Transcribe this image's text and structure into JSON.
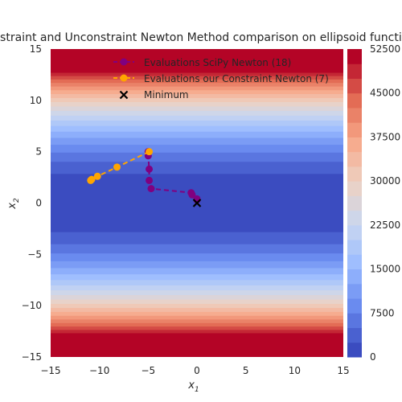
{
  "chart_data": {
    "type": "line",
    "title": "Constraint and Unconstraint Newton Method comparison on ellipsoid function",
    "xlabel": "x",
    "xlabel_sub": "1",
    "ylabel": "x",
    "ylabel_sub": "2",
    "xlim": [
      -15,
      15
    ],
    "ylim": [
      -15,
      15
    ],
    "x_ticks": [
      -15,
      -10,
      -5,
      0,
      5,
      10,
      15
    ],
    "y_ticks": [
      -15,
      -10,
      -5,
      0,
      5,
      10,
      15
    ],
    "grid": false,
    "legend_position": "top-center",
    "background": {
      "type": "filled-contour",
      "function": "ellipsoid",
      "max_level": 52500,
      "levels": 21,
      "colormap": "coolwarm",
      "colormap_stops": [
        "#3b4cc0",
        "#6788ee",
        "#9abbff",
        "#c9d7f0",
        "#edd1c2",
        "#f7a889",
        "#e26952",
        "#b40426"
      ]
    },
    "colorbar": {
      "ticks": [
        0,
        7500,
        15000,
        22500,
        30000,
        37500,
        45000,
        52500
      ],
      "tick_labels": [
        "0",
        "7500",
        "15000",
        "22500",
        "30000",
        "37500",
        "45000",
        "52500"
      ],
      "range": [
        0,
        52500
      ]
    },
    "series": [
      {
        "name": "Evaluations SciPy Newton (18)",
        "color": "#800080",
        "linestyle": "dashed",
        "marker": "circle",
        "x": [
          0,
          0.0,
          -0.5,
          -0.6,
          -4.7,
          -4.9,
          -4.9,
          -5.0,
          -5.0
        ],
        "y": [
          0.3,
          0.4,
          0.8,
          1.0,
          1.4,
          2.2,
          3.3,
          4.6,
          5.0
        ]
      },
      {
        "name": "Evaluations our Constraint Newton (7)",
        "color": "#ffa500",
        "linestyle": "dashed",
        "marker": "circle",
        "x": [
          -4.9,
          -8.2,
          -10.2,
          -10.8,
          -10.9
        ],
        "y": [
          5.0,
          3.5,
          2.6,
          2.3,
          2.2
        ]
      },
      {
        "name": "Minimum",
        "color": "#000000",
        "linestyle": "none",
        "marker": "x",
        "x": [
          0
        ],
        "y": [
          0
        ]
      }
    ]
  }
}
